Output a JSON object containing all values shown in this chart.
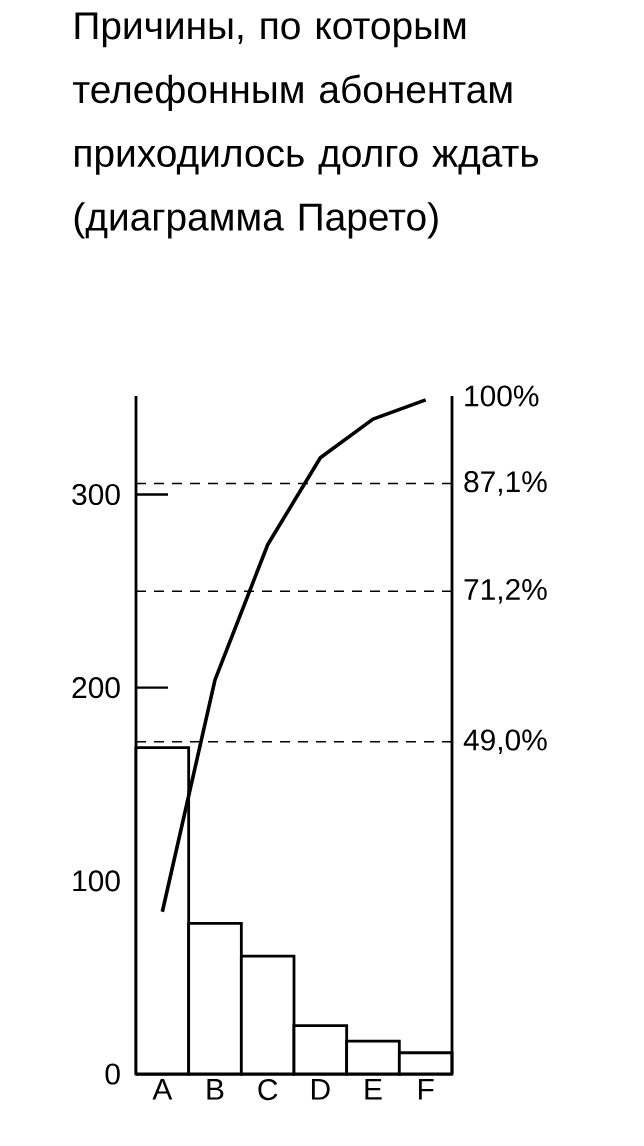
{
  "chart_data": {
    "type": "bar",
    "title": "Причины, по которым телефонным абонентам приходилось долго ждать (диаграмма Парето)",
    "categories": [
      "A",
      "B",
      "C",
      "D",
      "E",
      "F"
    ],
    "series": [
      {
        "color": "#ffffff",
        "values": [
          169,
          78,
          61,
          25,
          17,
          11
        ]
      },
      {
        "type": "line",
        "color": "#000000",
        "values": [
          84,
          204,
          274,
          319,
          339,
          349
        ]
      }
    ],
    "ylim": [
      0,
      351
    ],
    "yticks": [
      0,
      100,
      200,
      300
    ],
    "y2lim": [
      0,
      100
    ],
    "y2ticks": [
      {
        "value": 49.0,
        "label": "49,0%"
      },
      {
        "value": 71.2,
        "label": "71,2%"
      },
      {
        "value": 87.1,
        "label": "87,1%"
      },
      {
        "value": 100,
        "label": "100%"
      }
    ],
    "ref_lines": [
      {
        "axis": "y2",
        "value": 49.0,
        "line_style": "dashed"
      },
      {
        "axis": "y2",
        "value": 71.2,
        "line_style": "dashed"
      },
      {
        "axis": "y2",
        "value": 87.1,
        "line_style": "dashed"
      }
    ]
  }
}
